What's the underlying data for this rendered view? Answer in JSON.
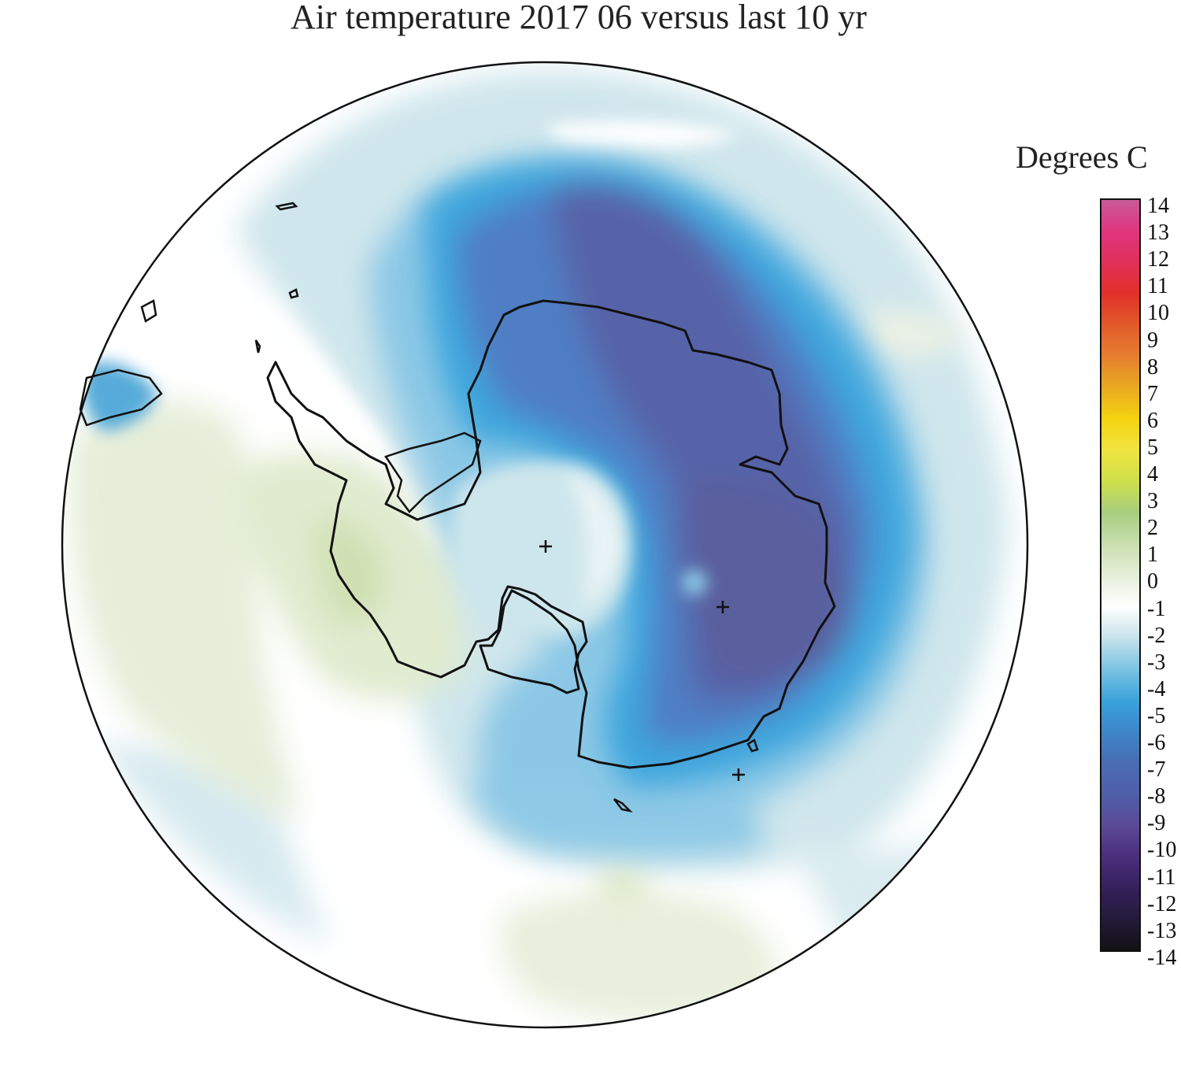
{
  "title": "Air temperature 2017 06 versus last 10 yr",
  "units_label": "Degrees C",
  "colorbar": {
    "ticks": [
      "14",
      "13",
      "12",
      "11",
      "10",
      "9",
      "8",
      "7",
      "6",
      "5",
      "4",
      "3",
      "2",
      "1",
      "0",
      "-1",
      "-2",
      "-3",
      "-4",
      "-5",
      "-6",
      "-7",
      "-8",
      "-9",
      "-10",
      "-11",
      "-12",
      "-13",
      "-14"
    ],
    "range": [
      -14,
      14
    ],
    "colors": [
      "#111111",
      "#231b3a",
      "#35205c",
      "#4a2e7c",
      "#5b4a96",
      "#4f5ea8",
      "#4a6db4",
      "#3d86c8",
      "#3aa3da",
      "#7cc3e3",
      "#c6e2ea",
      "#ffffff",
      "#e5eed8",
      "#c9dfaf",
      "#a7ce7f",
      "#cfe04a",
      "#f0e440",
      "#f5d310",
      "#e8a820",
      "#e57e30",
      "#e25a2a",
      "#e0302a",
      "#e0305a",
      "#e0357f",
      "#c85c9a"
    ]
  },
  "map": {
    "projection": "south-polar-stereographic",
    "markers": [
      "plus",
      "plus",
      "plus"
    ]
  }
}
